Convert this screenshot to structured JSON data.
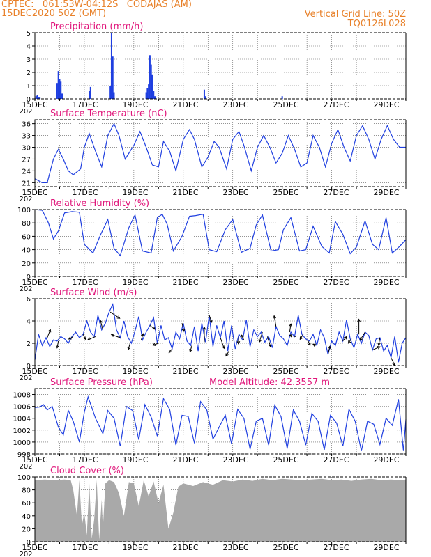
{
  "header": {
    "line1": "CPTEC:   061:53W-04:12S   CODAJAS (AM)",
    "line2": "15DEC2020 50Z (GMT)",
    "right1": "Vertical Grid Line: 50Z",
    "right2": "TQ0126L028"
  },
  "colors": {
    "line": "#1f3fe0",
    "bar": "#1f3fe0",
    "title": "#e0157a",
    "cloud": "#a9a9a9",
    "header": "#e8812a",
    "axis": "#000000"
  },
  "x_tick_labels": [
    "15DEC",
    "17DEC",
    "19DEC",
    "21DEC",
    "23DEC",
    "25DEC",
    "27DEC",
    "29DEC"
  ],
  "year_label": "202",
  "chart_data": [
    {
      "id": "precip",
      "type": "bar",
      "title": "Precipitation (mm/h)",
      "xlim": [
        0,
        15
      ],
      "ylim": [
        0,
        5
      ],
      "yticks": [
        0,
        1,
        2,
        3,
        4,
        5
      ],
      "x": [
        0.05,
        0.1,
        0.15,
        0.2,
        0.9,
        0.95,
        1.0,
        1.05,
        1.1,
        2.2,
        2.25,
        3.05,
        3.1,
        3.15,
        3.2,
        4.5,
        4.55,
        4.6,
        4.65,
        4.7,
        4.75,
        4.8,
        4.85,
        6.85,
        6.9,
        10.0
      ],
      "values": [
        0.2,
        0.3,
        0.1,
        0.1,
        1.2,
        2.1,
        1.5,
        1.3,
        0.4,
        0.6,
        0.9,
        1.0,
        5.0,
        3.2,
        0.5,
        0.5,
        0.8,
        1.1,
        3.3,
        2.6,
        1.8,
        0.6,
        0.2,
        0.7,
        0.2,
        0.2
      ]
    },
    {
      "id": "temp",
      "type": "line",
      "title": "Surface Temperature (nC)",
      "xlim": [
        0,
        15
      ],
      "ylim": [
        20,
        37
      ],
      "yticks": [
        21,
        24,
        27,
        30,
        33,
        36
      ],
      "x": [
        0,
        0.3,
        0.5,
        0.75,
        0.95,
        1.15,
        1.35,
        1.55,
        1.85,
        2.0,
        2.2,
        2.45,
        2.7,
        2.95,
        3.2,
        3.4,
        3.65,
        4.0,
        4.25,
        4.5,
        4.75,
        5.0,
        5.2,
        5.45,
        5.7,
        6.0,
        6.25,
        6.45,
        6.75,
        7.0,
        7.25,
        7.45,
        7.75,
        8.0,
        8.25,
        8.45,
        8.75,
        9.0,
        9.25,
        9.5,
        9.75,
        10.0,
        10.25,
        10.5,
        10.75,
        11.0,
        11.25,
        11.5,
        11.75,
        12.0,
        12.25,
        12.5,
        12.75,
        13.0,
        13.25,
        13.5,
        13.75,
        14.0,
        14.25,
        14.5,
        14.75,
        15.0
      ],
      "values": [
        22,
        21,
        21,
        27,
        29.5,
        27,
        24,
        23,
        24.5,
        30,
        33.5,
        29,
        25,
        33,
        36,
        33,
        27,
        30.5,
        34,
        30,
        25.5,
        25,
        31.5,
        29,
        24,
        32,
        34.5,
        32,
        25,
        27.5,
        31.5,
        30,
        24.5,
        32,
        34,
        30.5,
        24,
        30,
        33,
        30,
        26,
        28.5,
        33,
        29.5,
        25,
        26,
        33,
        30,
        25,
        31,
        34.5,
        30,
        26.5,
        33,
        35.5,
        32,
        27,
        32,
        35.5,
        32,
        30,
        30
      ]
    },
    {
      "id": "rh",
      "type": "line",
      "title": "Relative Humidity (%)",
      "xlim": [
        0,
        15
      ],
      "ylim": [
        0,
        100
      ],
      "yticks": [
        0,
        20,
        40,
        60,
        80,
        100
      ],
      "x": [
        0,
        0.3,
        0.55,
        0.75,
        0.95,
        1.2,
        1.5,
        1.8,
        2.0,
        2.35,
        2.65,
        2.95,
        3.2,
        3.45,
        3.8,
        4.05,
        4.35,
        4.7,
        4.95,
        5.15,
        5.35,
        5.6,
        5.95,
        6.25,
        6.5,
        6.8,
        7.05,
        7.35,
        7.7,
        8.0,
        8.35,
        8.7,
        8.95,
        9.2,
        9.55,
        9.85,
        10.05,
        10.35,
        10.7,
        10.95,
        11.25,
        11.6,
        11.9,
        12.15,
        12.45,
        12.75,
        13.0,
        13.35,
        13.65,
        13.9,
        14.2,
        14.45,
        14.75,
        15.0
      ],
      "values": [
        100,
        99,
        80,
        56,
        68,
        95,
        97,
        96,
        48,
        35,
        62,
        85,
        42,
        31,
        73,
        92,
        38,
        35,
        88,
        93,
        78,
        38,
        60,
        90,
        91,
        93,
        40,
        37,
        70,
        85,
        36,
        42,
        77,
        92,
        38,
        40,
        70,
        88,
        38,
        40,
        75,
        45,
        35,
        82,
        63,
        34,
        44,
        83,
        48,
        40,
        88,
        35,
        45,
        55
      ]
    },
    {
      "id": "wind",
      "type": "line",
      "title": "Surface Wind (m/s)",
      "xlim": [
        0,
        15
      ],
      "ylim": [
        0,
        6
      ],
      "yticks": [
        0,
        2,
        4,
        6
      ],
      "x": [
        0,
        0.15,
        0.3,
        0.45,
        0.6,
        0.75,
        0.9,
        1.05,
        1.2,
        1.35,
        1.5,
        1.65,
        1.8,
        1.95,
        2.1,
        2.25,
        2.4,
        2.55,
        2.7,
        2.85,
        3.0,
        3.15,
        3.3,
        3.45,
        3.6,
        3.75,
        3.9,
        4.05,
        4.2,
        4.35,
        4.5,
        4.65,
        4.8,
        4.95,
        5.1,
        5.25,
        5.4,
        5.55,
        5.7,
        5.85,
        6.0,
        6.15,
        6.3,
        6.45,
        6.6,
        6.75,
        6.9,
        7.05,
        7.2,
        7.35,
        7.5,
        7.65,
        7.8,
        7.95,
        8.1,
        8.25,
        8.4,
        8.55,
        8.7,
        8.85,
        9.0,
        9.15,
        9.3,
        9.45,
        9.6,
        9.75,
        9.9,
        10.05,
        10.2,
        10.35,
        10.5,
        10.65,
        10.8,
        10.95,
        11.1,
        11.25,
        11.4,
        11.55,
        11.7,
        11.85,
        12.0,
        12.15,
        12.3,
        12.45,
        12.6,
        12.75,
        12.9,
        13.05,
        13.2,
        13.35,
        13.5,
        13.65,
        13.8,
        13.95,
        14.1,
        14.25,
        14.4,
        14.55,
        14.7,
        14.85,
        15.0
      ],
      "values": [
        0.5,
        2.8,
        1.8,
        2.5,
        1.7,
        2.3,
        2.2,
        2.6,
        2.4,
        2.0,
        2.6,
        3.0,
        2.5,
        2.8,
        4.0,
        3.0,
        2.6,
        4.5,
        3.2,
        3.8,
        4.8,
        5.5,
        3.2,
        2.5,
        4.0,
        2.6,
        2.0,
        3.1,
        4.4,
        2.3,
        3.0,
        3.6,
        4.3,
        2.0,
        3.6,
        2.3,
        2.5,
        1.5,
        3.0,
        2.4,
        3.8,
        2.2,
        1.8,
        3.5,
        1.3,
        3.8,
        2.1,
        4.5,
        1.7,
        3.6,
        2.5,
        4.0,
        1.3,
        3.6,
        1.5,
        2.8,
        2.3,
        4.1,
        1.7,
        3.2,
        2.6,
        3.0,
        2.1,
        2.6,
        1.6,
        3.5,
        2.7,
        2.4,
        1.8,
        3.0,
        2.6,
        4.5,
        2.8,
        2.4,
        2.2,
        2.8,
        1.8,
        3.2,
        2.5,
        1.0,
        2.2,
        1.8,
        3.0,
        2.2,
        4.1,
        2.4,
        1.6,
        2.8,
        2.0,
        3.0,
        2.7,
        1.4,
        2.4,
        2.5,
        1.3,
        1.8,
        0.7,
        2.6,
        0.3,
        2.0,
        2.5
      ],
      "vectors": {
        "x": [
          0.5,
          0.95,
          1.55,
          1.95,
          2.45,
          2.75,
          3.05,
          3.45,
          3.85,
          4.3,
          4.65,
          5.0,
          5.55,
          5.95,
          6.35,
          6.85,
          7.05,
          7.5,
          7.85,
          8.25,
          8.45,
          9.2,
          9.4,
          9.75,
          10.3,
          10.55,
          10.85,
          11.05,
          11.35,
          11.85,
          12.45,
          12.8,
          13.1,
          13.35,
          13.65,
          13.95,
          14.4
        ],
        "u": [
          0.5,
          -0.2,
          -0.7,
          0.4,
          -1.2,
          -0.4,
          1.5,
          -1.4,
          -0.3,
          0.3,
          0.8,
          -0.9,
          -0.5,
          0.3,
          -0.3,
          0.0,
          0.4,
          0.6,
          -0.5,
          -0.1,
          -0.4,
          -0.5,
          0.5,
          -0.3,
          0.2,
          -1.0,
          -0.5,
          0.3,
          -0.4,
          0.3,
          0.6,
          -0.5,
          0.0,
          -0.8,
          1.2,
          -0.2,
          0.6
        ],
        "v": [
          1.3,
          -1.1,
          -0.4,
          -0.8,
          -0.5,
          1.5,
          -1.0,
          0.5,
          -1.0,
          1.0,
          -0.6,
          -0.3,
          -0.6,
          -1.3,
          -1.0,
          2.4,
          -1.1,
          -1.7,
          -0.8,
          -1.5,
          0.8,
          -1.6,
          -1.6,
          1.7,
          1.3,
          0.2,
          -0.8,
          -0.7,
          0.2,
          1.3,
          0.7,
          -0.7,
          2.4,
          -1.3,
          0.5,
          -1.2,
          -1.2
        ]
      }
    },
    {
      "id": "pres",
      "type": "line",
      "title": "Surface Pressure (hPa)",
      "extra": "Model Altitude: 42.3557 m",
      "xlim": [
        0,
        15
      ],
      "ylim": [
        998,
        1009
      ],
      "yticks": [
        998,
        1000,
        1002,
        1004,
        1006,
        1008
      ],
      "x": [
        0,
        0.2,
        0.35,
        0.5,
        0.7,
        0.95,
        1.15,
        1.35,
        1.55,
        1.8,
        2.0,
        2.15,
        2.45,
        2.75,
        2.95,
        3.2,
        3.45,
        3.7,
        3.95,
        4.2,
        4.45,
        4.7,
        4.95,
        5.2,
        5.45,
        5.7,
        5.95,
        6.2,
        6.45,
        6.7,
        6.95,
        7.2,
        7.45,
        7.7,
        7.95,
        8.2,
        8.45,
        8.7,
        8.95,
        9.2,
        9.45,
        9.7,
        9.95,
        10.2,
        10.45,
        10.7,
        10.95,
        11.2,
        11.45,
        11.7,
        11.95,
        12.2,
        12.45,
        12.7,
        12.95,
        13.2,
        13.45,
        13.7,
        13.95,
        14.2,
        14.45,
        14.7,
        14.9,
        15.0
      ],
      "values": [
        1005.8,
        1005.9,
        1006.3,
        1005.4,
        1006.0,
        1002.5,
        1001.2,
        1005.3,
        1003.5,
        1000.0,
        1005.0,
        1007.6,
        1004.0,
        1001.4,
        1005.3,
        1004.0,
        999.3,
        1006.0,
        1005.3,
        1000.4,
        1006.3,
        1004.2,
        1001.0,
        1007.3,
        1005.5,
        999.5,
        1004.5,
        1004.3,
        999.8,
        1006.8,
        1005.4,
        1000.5,
        1002.5,
        1004.5,
        999.7,
        1005.5,
        1004.0,
        998.8,
        1003.5,
        1004.0,
        999.5,
        1006.2,
        1004.3,
        998.9,
        1005.4,
        1003.5,
        999.5,
        1004.8,
        1003.5,
        998.7,
        1004.5,
        1003.2,
        999.3,
        1005.5,
        1003.5,
        998.5,
        1003.5,
        1003.0,
        999.6,
        1004.0,
        1002.8,
        1007.2,
        998.5,
        1003.8
      ]
    },
    {
      "id": "cloud",
      "type": "area",
      "title": "Cloud Cover (%)",
      "xlim": [
        0,
        15
      ],
      "ylim": [
        0,
        100
      ],
      "yticks": [
        0,
        20,
        40,
        60,
        80,
        100
      ],
      "x": [
        0,
        0.4,
        0.8,
        1.2,
        1.45,
        1.55,
        1.7,
        1.8,
        1.9,
        2.0,
        2.1,
        2.2,
        2.3,
        2.4,
        2.5,
        2.6,
        2.7,
        2.75,
        2.85,
        3.0,
        3.2,
        3.4,
        3.6,
        3.8,
        4.0,
        4.2,
        4.4,
        4.6,
        4.8,
        5.0,
        5.2,
        5.4,
        5.6,
        5.8,
        6.0,
        6.4,
        6.8,
        7.2,
        7.6,
        8.0,
        8.4,
        8.8,
        9.2,
        9.6,
        10.0,
        10.4,
        10.8,
        11.2,
        11.6,
        12.0,
        12.4,
        12.8,
        13.2,
        13.6,
        14.0,
        14.4,
        14.8,
        15.0
      ],
      "values": [
        95,
        96,
        95,
        96,
        95,
        80,
        40,
        95,
        25,
        45,
        10,
        90,
        5,
        35,
        95,
        3,
        65,
        20,
        90,
        95,
        92,
        75,
        40,
        92,
        90,
        55,
        95,
        70,
        93,
        60,
        88,
        20,
        45,
        85,
        90,
        86,
        92,
        88,
        95,
        93,
        96,
        94,
        97,
        95,
        97,
        96,
        95,
        96,
        97,
        95,
        96,
        94,
        96,
        97,
        95,
        96,
        95,
        96
      ]
    }
  ]
}
